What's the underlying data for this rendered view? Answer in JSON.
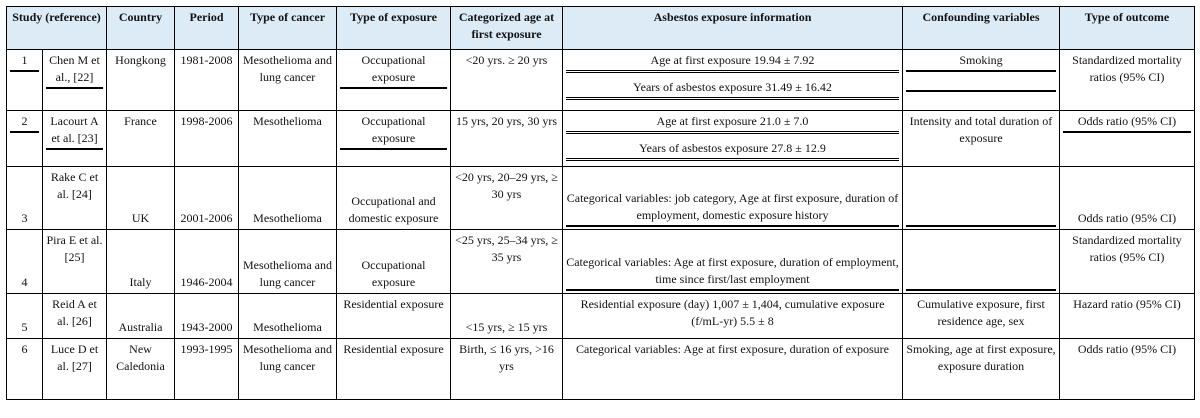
{
  "table": {
    "headers": [
      "Study (reference)",
      "Country",
      "Period",
      "Type of cancer",
      "Type of exposure",
      "Categorized age at first exposure",
      "Asbestos exposure information",
      "Confounding variables",
      "Type of outcome"
    ],
    "rows": [
      {
        "num": "1",
        "study": "Chen M et al., [22]",
        "country": "Hongkong",
        "period": "1981-2008",
        "cancer": "Mesothelioma and lung cancer",
        "exposure": "Occupational exposure",
        "age": "<20 yrs.  ≥ 20 yrs",
        "info": [
          "Age at first exposure 19.94 ± 7.92",
          "Years of asbestos exposure 31.49 ± 16.42"
        ],
        "confounding": "Smoking",
        "outcome": "Standardized mortality ratios (95% CI)"
      },
      {
        "num": "2",
        "study": "Lacourt A et al. [23]",
        "country": "France",
        "period": "1998-2006",
        "cancer": "Mesothelioma",
        "exposure": "Occupational exposure",
        "age": "15 yrs, 20 yrs, 30 yrs",
        "info": [
          "Age at first exposure 21.0 ± 7.0",
          "Years of asbestos exposure 27.8 ± 12.9"
        ],
        "confounding": "Intensity and total duration of exposure",
        "outcome": "Odds ratio (95% CI)"
      },
      {
        "num": "3",
        "study": "Rake C et al. [24]",
        "country": "UK",
        "period": "2001-2006",
        "cancer": "Mesothelioma",
        "exposure": "Occupational and domestic exposure",
        "age": "<20 yrs, 20–29 yrs, ≥ 30 yrs",
        "info": [
          "Categorical variables: job category, Age at first exposure, duration of employment, domestic exposure history"
        ],
        "confounding": "",
        "outcome": "Odds ratio (95% CI)"
      },
      {
        "num": "4",
        "study": "Pira E et al. [25]",
        "country": "Italy",
        "period": "1946-2004",
        "cancer": "Mesothelioma and lung cancer",
        "exposure": "Occupational exposure",
        "age": "<25 yrs, 25–34 yrs, ≥ 35 yrs",
        "info": [
          "Categorical variables: Age at first exposure, duration of employment, time since first/last employment"
        ],
        "confounding": "",
        "outcome": "Standardized mortality ratios (95% CI)"
      },
      {
        "num": "5",
        "study": "Reid A et al. [26]",
        "country": "Australia",
        "period": "1943-2000",
        "cancer": "Mesothelioma",
        "exposure": "Residential exposure",
        "age": "<15 yrs,  ≥ 15 yrs",
        "info": [
          "Residential exposure (day) 1,007 ± 1,404, cumulative exposure (f/mL-yr) 5.5 ± 8"
        ],
        "confounding": "Cumulative exposure, first residence age, sex",
        "outcome": "Hazard ratio (95% CI)"
      },
      {
        "num": "6",
        "study": "Luce D et al. [27]",
        "country": "New Caledonia",
        "period": "1993-1995",
        "cancer": "Mesothelioma and lung cancer",
        "exposure": "Residential exposure",
        "age": "Birth,  ≤ 16 yrs, >16 yrs",
        "info": [
          "Categorical variables: Age at first exposure, duration of exposure"
        ],
        "confounding": "Smoking, age at first exposure, exposure duration",
        "outcome": "Odds ratio (95% CI)"
      }
    ]
  }
}
